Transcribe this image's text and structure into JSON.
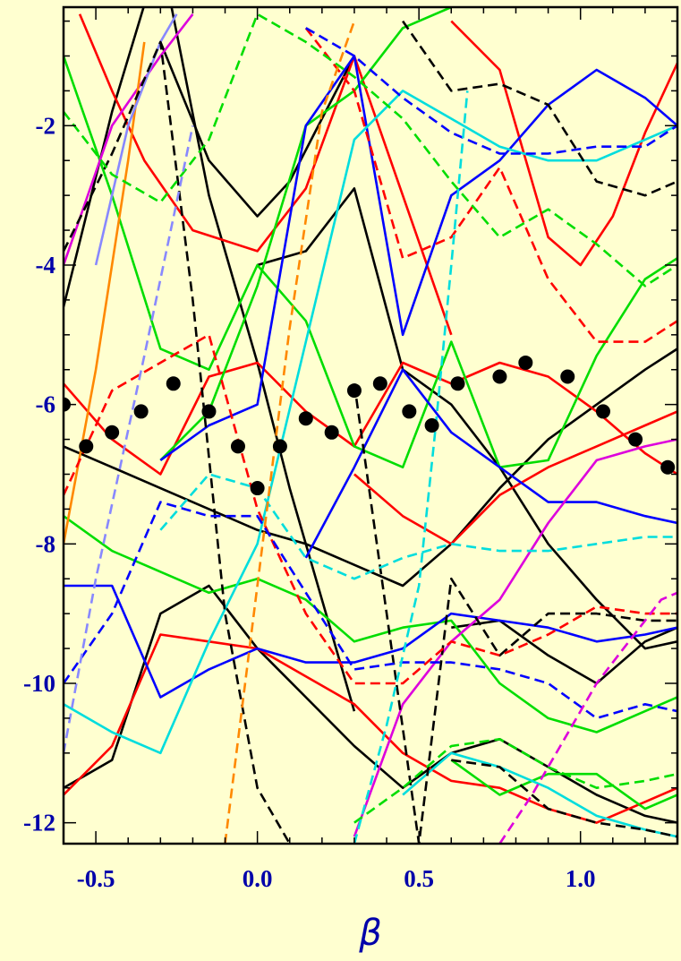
{
  "chart_data": {
    "type": "line",
    "title": "",
    "xlabel": "β",
    "ylabel": "",
    "xlim": [
      -0.6,
      1.3
    ],
    "ylim": [
      -12.3,
      -0.3
    ],
    "x_ticks": [
      -0.5,
      0.0,
      0.5,
      1.0
    ],
    "x_tick_labels": [
      "-0.5",
      "0.0",
      "0.5",
      "1.0"
    ],
    "y_ticks": [
      -2,
      -4,
      -6,
      -8,
      -10,
      -12
    ],
    "y_tick_labels": [
      "-2",
      "-4",
      "-6",
      "-8",
      "-10",
      "-12"
    ],
    "grid": false,
    "background": "#FFFFD0",
    "axis_text_color": "#0000AA",
    "series": [
      {
        "color": "#000000",
        "style": "solid",
        "x": [
          -0.6,
          -0.45,
          -0.3,
          -0.15,
          0.0,
          0.15,
          0.3,
          0.45,
          0.6,
          0.75,
          0.9,
          1.05,
          1.2,
          1.3
        ],
        "y": [
          -6.6,
          -6.9,
          -7.2,
          -7.5,
          -7.8,
          -8.0,
          -8.3,
          -8.6,
          -8.0,
          -7.2,
          -6.5,
          -6.0,
          -5.5,
          -5.2
        ]
      },
      {
        "color": "#000000",
        "style": "solid",
        "x": [
          -0.6,
          -0.45,
          -0.3,
          -0.15,
          0.0,
          0.1,
          0.2,
          0.3
        ],
        "y": [
          -4.6,
          -1.8,
          0.5,
          -3.0,
          -5.4,
          -7.2,
          -8.8,
          -10.4
        ]
      },
      {
        "color": "#000000",
        "style": "solid",
        "x": [
          -0.3,
          -0.15,
          0.0,
          0.1,
          0.2,
          0.3
        ],
        "y": [
          -0.8,
          -2.5,
          -3.3,
          -2.8,
          -1.9,
          -1.0
        ]
      },
      {
        "color": "#000000",
        "style": "solid",
        "x": [
          0.0,
          0.15,
          0.3,
          0.45,
          0.6,
          0.75,
          0.9,
          1.05,
          1.2,
          1.3
        ],
        "y": [
          -4.0,
          -3.8,
          -2.9,
          -5.5,
          -6.0,
          -6.9,
          -8.0,
          -8.8,
          -9.5,
          -9.4
        ]
      },
      {
        "color": "#000000",
        "style": "solid",
        "x": [
          -0.6,
          -0.45,
          -0.3,
          -0.15,
          0.0,
          0.15,
          0.3,
          0.45,
          0.6,
          0.75,
          0.9,
          1.05,
          1.2,
          1.3
        ],
        "y": [
          -11.5,
          -11.1,
          -9.0,
          -8.6,
          -9.5,
          -10.2,
          -10.9,
          -11.5,
          -11.0,
          -10.8,
          -11.2,
          -11.6,
          -11.9,
          -12.0
        ]
      },
      {
        "color": "#000000",
        "style": "solid",
        "x": [
          0.6,
          0.75,
          0.9,
          1.05,
          1.2,
          1.3
        ],
        "y": [
          -9.2,
          -9.1,
          -9.6,
          -10.0,
          -9.4,
          -9.2
        ]
      },
      {
        "color": "#FF0000",
        "style": "solid",
        "x": [
          -0.6,
          -0.45,
          -0.3,
          -0.15,
          0.0,
          0.15,
          0.3,
          0.45,
          0.6,
          0.75,
          0.9,
          1.05,
          1.2,
          1.3
        ],
        "y": [
          -5.7,
          -6.5,
          -7.0,
          -5.6,
          -5.4,
          -6.1,
          -6.6,
          -5.4,
          -5.7,
          -5.4,
          -5.6,
          -6.1,
          -6.7,
          -7.0
        ]
      },
      {
        "color": "#FF0000",
        "style": "solid",
        "x": [
          -0.55,
          -0.45,
          -0.35,
          -0.2,
          0.0,
          0.15,
          0.3,
          0.45,
          0.6
        ],
        "y": [
          -0.4,
          -1.5,
          -2.5,
          -3.5,
          -3.8,
          -2.9,
          -1.0,
          -3.0,
          -5.0
        ]
      },
      {
        "color": "#FF0000",
        "style": "solid",
        "x": [
          0.6,
          0.75,
          0.9,
          1.0,
          1.1,
          1.2,
          1.3
        ],
        "y": [
          -0.5,
          -1.2,
          -3.6,
          -4.0,
          -3.3,
          -2.1,
          -1.1
        ]
      },
      {
        "color": "#FF0000",
        "style": "solid",
        "x": [
          -0.6,
          -0.45,
          -0.3,
          -0.15,
          0.0,
          0.15,
          0.3,
          0.45,
          0.6,
          0.75,
          0.9,
          1.05,
          1.2,
          1.3
        ],
        "y": [
          -11.6,
          -10.9,
          -9.3,
          -9.4,
          -9.5,
          -9.9,
          -10.3,
          -11.0,
          -11.4,
          -11.5,
          -11.8,
          -12.0,
          -11.7,
          -11.5
        ]
      },
      {
        "color": "#FF0000",
        "style": "solid",
        "x": [
          0.3,
          0.45,
          0.6,
          0.75,
          0.9,
          1.05,
          1.2,
          1.3
        ],
        "y": [
          -7.0,
          -7.6,
          -8.0,
          -7.3,
          -6.9,
          -6.6,
          -6.3,
          -6.1
        ]
      },
      {
        "color": "#00DD00",
        "style": "solid",
        "x": [
          -0.6,
          -0.45,
          -0.3,
          -0.15,
          0.0,
          0.15,
          0.3,
          0.45,
          0.6,
          0.75,
          0.9,
          1.05,
          1.2,
          1.3
        ],
        "y": [
          -1.0,
          -3.0,
          -5.2,
          -5.5,
          -4.0,
          -4.8,
          -6.6,
          -6.9,
          -5.1,
          -6.9,
          -6.8,
          -5.3,
          -4.2,
          -3.9
        ]
      },
      {
        "color": "#00DD00",
        "style": "solid",
        "x": [
          -0.6,
          -0.45,
          -0.3,
          -0.15,
          0.0,
          0.15,
          0.3,
          0.45,
          0.6,
          0.75,
          0.9,
          1.05,
          1.2,
          1.3
        ],
        "y": [
          -7.6,
          -8.1,
          -8.4,
          -8.7,
          -8.5,
          -8.8,
          -9.4,
          -9.2,
          -9.1,
          -10.0,
          -10.5,
          -10.7,
          -10.4,
          -10.2
        ]
      },
      {
        "color": "#00DD00",
        "style": "solid",
        "x": [
          -0.3,
          -0.15,
          0.0,
          0.15,
          0.3,
          0.45,
          0.6
        ],
        "y": [
          -6.8,
          -6.1,
          -4.3,
          -2.0,
          -1.5,
          -0.6,
          -0.3
        ]
      },
      {
        "color": "#00DD00",
        "style": "solid",
        "x": [
          0.6,
          0.75,
          0.9,
          1.05,
          1.2,
          1.3
        ],
        "y": [
          -11.1,
          -11.6,
          -11.3,
          -11.3,
          -11.8,
          -11.6
        ]
      },
      {
        "color": "#0000FF",
        "style": "solid",
        "x": [
          -0.6,
          -0.45,
          -0.3,
          -0.15,
          0.0,
          0.15,
          0.3,
          0.45,
          0.6,
          0.75,
          0.9,
          1.05,
          1.2,
          1.3
        ],
        "y": [
          -8.6,
          -8.6,
          -10.2,
          -9.8,
          -9.5,
          -9.7,
          -9.7,
          -9.5,
          -9.0,
          -9.1,
          -9.2,
          -9.4,
          -9.3,
          -9.2
        ]
      },
      {
        "color": "#0000FF",
        "style": "solid",
        "x": [
          -0.3,
          -0.15,
          0.0,
          0.15,
          0.3,
          0.45,
          0.6,
          0.75,
          0.9,
          1.05,
          1.2,
          1.3
        ],
        "y": [
          -6.8,
          -6.3,
          -6.0,
          -2.0,
          -1.0,
          -5.0,
          -3.0,
          -2.5,
          -1.7,
          -1.2,
          -1.6,
          -2.0
        ]
      },
      {
        "color": "#0000FF",
        "style": "solid",
        "x": [
          0.15,
          0.3,
          0.45,
          0.6,
          0.75,
          0.9,
          1.05,
          1.2,
          1.3
        ],
        "y": [
          -8.2,
          -6.9,
          -5.5,
          -6.4,
          -6.9,
          -7.4,
          -7.4,
          -7.6,
          -7.7
        ]
      },
      {
        "color": "#00DDDD",
        "style": "solid",
        "x": [
          -0.6,
          -0.45,
          -0.3,
          -0.15,
          0.0,
          0.15,
          0.3,
          0.45,
          0.6,
          0.75,
          0.9,
          1.05,
          1.2,
          1.3
        ],
        "y": [
          -10.3,
          -10.7,
          -11.0,
          -9.4,
          -8.0,
          -5.1,
          -2.2,
          -1.5,
          -1.9,
          -2.3,
          -2.5,
          -2.5,
          -2.2,
          -2.0
        ]
      },
      {
        "color": "#00DDDD",
        "style": "solid",
        "x": [
          0.45,
          0.6,
          0.75,
          0.9,
          1.05,
          1.2,
          1.3
        ],
        "y": [
          -11.6,
          -11.0,
          -11.2,
          -11.5,
          -11.9,
          -12.1,
          -12.2
        ]
      },
      {
        "color": "#DD00DD",
        "style": "solid",
        "x": [
          0.3,
          0.45,
          0.6,
          0.75,
          0.9,
          1.05,
          1.2,
          1.3
        ],
        "y": [
          -12.2,
          -10.3,
          -9.4,
          -8.8,
          -7.7,
          -6.8,
          -6.6,
          -6.5
        ]
      },
      {
        "color": "#DD00DD",
        "style": "solid",
        "x": [
          -0.6,
          -0.45,
          -0.3,
          -0.2
        ],
        "y": [
          -4.0,
          -2.0,
          -1.0,
          -0.4
        ]
      },
      {
        "color": "#FF8800",
        "style": "solid",
        "x": [
          -0.6,
          -0.5,
          -0.4,
          -0.35
        ],
        "y": [
          -8.0,
          -5.5,
          -2.5,
          -0.8
        ]
      },
      {
        "color": "#8888FF",
        "style": "solid",
        "x": [
          -0.5,
          -0.4,
          -0.3,
          -0.25
        ],
        "y": [
          -4.0,
          -2.0,
          -0.8,
          -0.4
        ]
      },
      {
        "color": "#000000",
        "style": "dashed",
        "x": [
          -0.6,
          -0.45,
          -0.3,
          -0.2,
          -0.1,
          0.0,
          0.1
        ],
        "y": [
          -3.8,
          -2.4,
          -0.8,
          -4.5,
          -9.0,
          -11.5,
          -12.3
        ]
      },
      {
        "color": "#000000",
        "style": "dashed",
        "x": [
          0.3,
          0.4,
          0.5,
          0.6,
          0.75,
          0.9,
          1.05,
          1.2,
          1.3
        ],
        "y": [
          -5.7,
          -9.0,
          -12.3,
          -8.5,
          -9.6,
          -9.0,
          -9.0,
          -9.1,
          -9.1
        ]
      },
      {
        "color": "#000000",
        "style": "dashed",
        "x": [
          0.6,
          0.75,
          0.9,
          1.05,
          1.2,
          1.3
        ],
        "y": [
          -11.1,
          -11.2,
          -11.8,
          -12.0,
          -12.1,
          -12.2
        ]
      },
      {
        "color": "#000000",
        "style": "dashed",
        "x": [
          0.45,
          0.6,
          0.75,
          0.9,
          1.05,
          1.2,
          1.3
        ],
        "y": [
          -0.5,
          -1.5,
          -1.4,
          -1.7,
          -2.8,
          -3.0,
          -2.8
        ]
      },
      {
        "color": "#FF0000",
        "style": "dashed",
        "x": [
          -0.6,
          -0.45,
          -0.3,
          -0.15,
          0.0,
          0.15,
          0.3,
          0.45,
          0.6,
          0.75,
          0.9,
          1.05,
          1.2,
          1.3
        ],
        "y": [
          -7.3,
          -5.8,
          -5.4,
          -5.0,
          -7.5,
          -9.0,
          -10.0,
          -10.0,
          -9.4,
          -9.6,
          -9.3,
          -8.9,
          -9.0,
          -9.0
        ]
      },
      {
        "color": "#FF0000",
        "style": "dashed",
        "x": [
          0.15,
          0.3,
          0.45,
          0.6,
          0.75,
          0.9,
          1.05,
          1.2,
          1.3
        ],
        "y": [
          -0.6,
          -1.5,
          -3.9,
          -3.6,
          -2.6,
          -4.2,
          -5.1,
          -5.1,
          -4.8
        ]
      },
      {
        "color": "#00DD00",
        "style": "dashed",
        "x": [
          -0.6,
          -0.45,
          -0.3,
          -0.15,
          0.0,
          0.15,
          0.3,
          0.45,
          0.6,
          0.75,
          0.9,
          1.05,
          1.2,
          1.3
        ],
        "y": [
          -1.8,
          -2.7,
          -3.1,
          -2.2,
          -0.4,
          -0.8,
          -1.3,
          -1.9,
          -2.8,
          -3.6,
          -3.2,
          -3.7,
          -4.3,
          -4.0
        ]
      },
      {
        "color": "#00DD00",
        "style": "dashed",
        "x": [
          0.3,
          0.45,
          0.6,
          0.75,
          0.9,
          1.05,
          1.2,
          1.3
        ],
        "y": [
          -12.0,
          -11.5,
          -10.9,
          -10.8,
          -11.2,
          -11.5,
          -11.4,
          -11.3
        ]
      },
      {
        "color": "#0000FF",
        "style": "dashed",
        "x": [
          -0.6,
          -0.45,
          -0.3,
          -0.15,
          0.0,
          0.15,
          0.3,
          0.45,
          0.6,
          0.75,
          0.9,
          1.05,
          1.2,
          1.3
        ],
        "y": [
          -10.0,
          -9.0,
          -7.4,
          -7.6,
          -7.6,
          -8.7,
          -9.8,
          -9.7,
          -9.7,
          -9.8,
          -10.0,
          -10.5,
          -10.3,
          -10.4
        ]
      },
      {
        "color": "#0000FF",
        "style": "dashed",
        "x": [
          0.15,
          0.3,
          0.45,
          0.6,
          0.75,
          0.9,
          1.05,
          1.2,
          1.3
        ],
        "y": [
          -0.6,
          -1.0,
          -1.6,
          -2.1,
          -2.4,
          -2.4,
          -2.3,
          -2.3,
          -2.0
        ]
      },
      {
        "color": "#00DDDD",
        "style": "dashed",
        "x": [
          -0.3,
          -0.15,
          0.0,
          0.15,
          0.3,
          0.45,
          0.6,
          0.75,
          0.9,
          1.05,
          1.2,
          1.3
        ],
        "y": [
          -7.8,
          -7.0,
          -7.2,
          -8.2,
          -8.5,
          -8.2,
          -8.0,
          -8.1,
          -8.1,
          -8.0,
          -7.9,
          -7.9
        ]
      },
      {
        "color": "#00DDDD",
        "style": "dashed",
        "x": [
          0.3,
          0.4,
          0.5,
          0.55,
          0.6,
          0.65
        ],
        "y": [
          -12.3,
          -10.6,
          -8.6,
          -6.4,
          -4.0,
          -1.5
        ]
      },
      {
        "color": "#DD00DD",
        "style": "dashed",
        "x": [
          0.75,
          0.85,
          0.95,
          1.05,
          1.15,
          1.25,
          1.3
        ],
        "y": [
          -12.3,
          -11.6,
          -10.8,
          -10.0,
          -9.4,
          -8.8,
          -8.7
        ]
      },
      {
        "color": "#FF8800",
        "style": "dashed",
        "x": [
          -0.1,
          0.0,
          0.1,
          0.2,
          0.3
        ],
        "y": [
          -12.3,
          -8.6,
          -4.9,
          -1.8,
          -0.5
        ]
      },
      {
        "color": "#8888FF",
        "style": "dashed",
        "x": [
          -0.6,
          -0.5,
          -0.35,
          -0.2
        ],
        "y": [
          -11.0,
          -8.5,
          -5.3,
          -2.0
        ]
      }
    ],
    "markers": {
      "name": "dots",
      "color": "#000000",
      "x": [
        -0.6,
        -0.53,
        -0.45,
        -0.36,
        -0.26,
        -0.15,
        -0.06,
        0.0,
        0.07,
        0.15,
        0.23,
        0.3,
        0.38,
        0.47,
        0.54,
        0.62,
        0.75,
        0.83,
        0.96,
        1.07,
        1.17,
        1.27
      ],
      "y": [
        -6.0,
        -6.6,
        -6.4,
        -6.1,
        -5.7,
        -6.1,
        -6.6,
        -7.2,
        -6.6,
        -6.2,
        -6.4,
        -5.8,
        -5.7,
        -6.1,
        -6.3,
        -5.7,
        -5.6,
        -5.4,
        -5.6,
        -6.1,
        -6.5,
        -6.9
      ]
    }
  }
}
